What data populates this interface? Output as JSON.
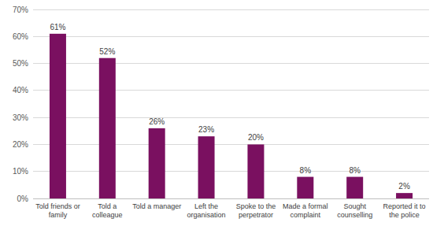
{
  "chart_data": {
    "type": "bar",
    "categories": [
      "Told friends or family",
      "Told a colleague",
      "Told a manager",
      "Left the organisation",
      "Spoke to the perpetrator",
      "Made a formal complaint",
      "Sought counselling",
      "Reported it to the police"
    ],
    "values": [
      61,
      52,
      26,
      23,
      20,
      8,
      8,
      2
    ],
    "value_labels": [
      "61%",
      "52%",
      "26%",
      "23%",
      "20%",
      "8%",
      "8%",
      "2%"
    ],
    "color": "#7a1060",
    "ylim": [
      0,
      70
    ],
    "yticks": [
      {
        "value": 0,
        "label": "0%"
      },
      {
        "value": 10,
        "label": "10%"
      },
      {
        "value": 20,
        "label": "20%"
      },
      {
        "value": 30,
        "label": "30%"
      },
      {
        "value": 40,
        "label": "40%"
      },
      {
        "value": 50,
        "label": "50%"
      },
      {
        "value": 60,
        "label": "60%"
      },
      {
        "value": 70,
        "label": "70%"
      }
    ],
    "grid": true,
    "data_labels": true
  }
}
